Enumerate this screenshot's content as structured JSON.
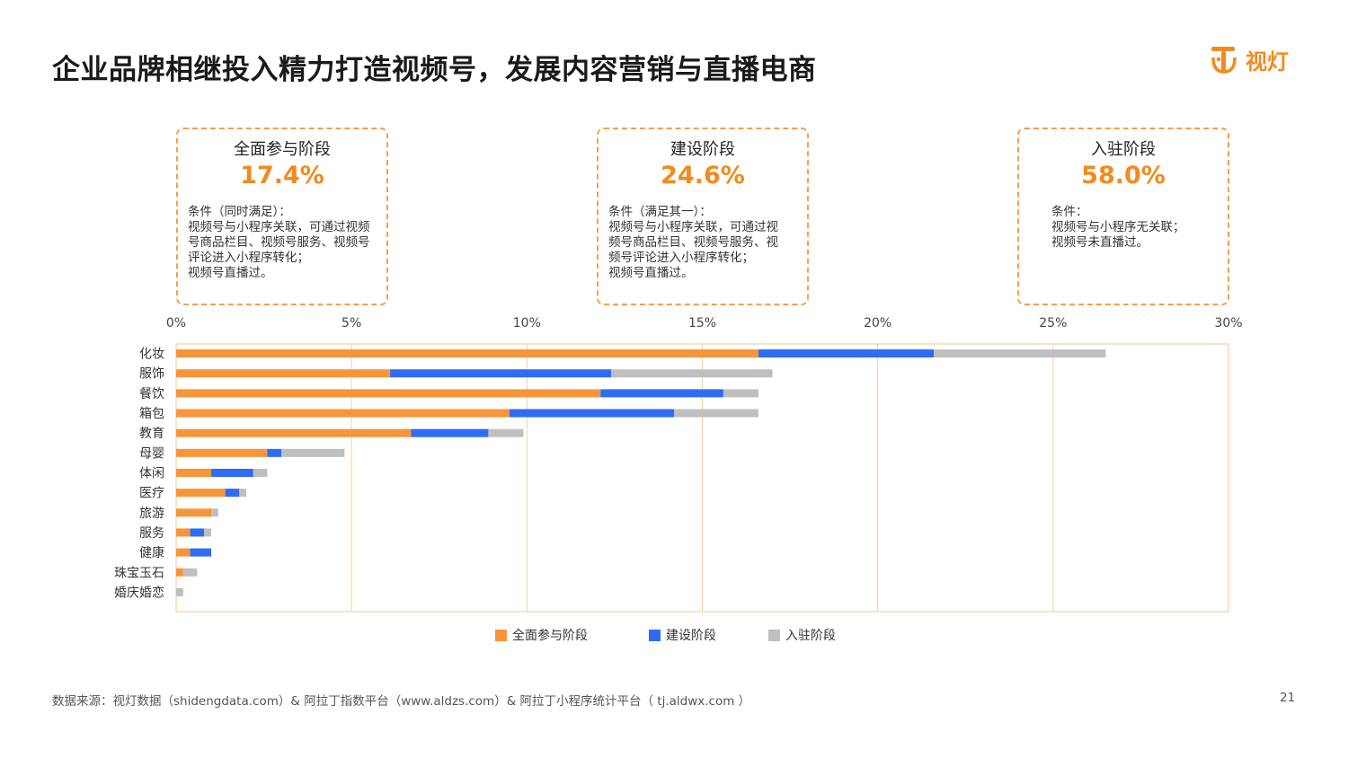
{
  "page": {
    "title": "企业品牌相继投入精力打造视频号，发展内容营销与直播电商",
    "logo_text": "视灯",
    "footer": "数据来源：视灯数据（shidengdata.com）& 阿拉丁指数平台（www.aldzs.com）& 阿拉丁小程序统计平台（ tj.aldwx.com ）",
    "page_number": "21"
  },
  "stages": [
    {
      "title": "全面参与阶段",
      "percent": "17.4%",
      "lines": [
        "条件（同时满足）：",
        "视频号与小程序关联，可通过视频",
        "号商品栏目、视频号服务、视频号",
        "评论进入小程序转化；",
        "视频号直播过。"
      ]
    },
    {
      "title": "建设阶段",
      "percent": "24.6%",
      "lines": [
        "条件（满足其一）：",
        "视频号与小程序关联，可通过视",
        "频号商品栏目、视频号服务、视",
        "频号评论进入小程序转化；",
        "视频号直播过。"
      ]
    },
    {
      "title": "入驻阶段",
      "percent": "58.0%",
      "lines": [
        "条件：",
        "视频号与小程序无关联；",
        "视频号未直播过。"
      ]
    }
  ],
  "colors": {
    "full": "#f7953a",
    "build": "#2f6bf5",
    "join": "#bfbfbf",
    "accent": "#f28a1e"
  },
  "chart_data": {
    "type": "bar",
    "orientation": "horizontal",
    "stacked": true,
    "categories": [
      "化妆",
      "服饰",
      "餐饮",
      "箱包",
      "教育",
      "母婴",
      "体闲",
      "医疗",
      "旅游",
      "服务",
      "健康",
      "珠宝玉石",
      "婚庆婚恋"
    ],
    "series": [
      {
        "name": "全面参与阶段",
        "values": [
          16.6,
          6.1,
          12.1,
          9.5,
          6.7,
          2.6,
          1.0,
          1.4,
          1.0,
          0.4,
          0.4,
          0.2,
          0.0
        ]
      },
      {
        "name": "建设阶段",
        "values": [
          5.0,
          6.3,
          3.5,
          4.7,
          2.2,
          0.4,
          1.2,
          0.4,
          0.0,
          0.4,
          0.6,
          0.0,
          0.0
        ]
      },
      {
        "name": "入驻阶段",
        "values": [
          4.9,
          4.6,
          1.0,
          2.4,
          1.0,
          1.8,
          0.4,
          0.2,
          0.2,
          0.2,
          0.0,
          0.4,
          0.2
        ]
      }
    ],
    "xlim": [
      0,
      30
    ],
    "xticks": [
      "0%",
      "5%",
      "10%",
      "15%",
      "20%",
      "25%",
      "30%"
    ],
    "grid": true,
    "legend_position": "bottom"
  }
}
